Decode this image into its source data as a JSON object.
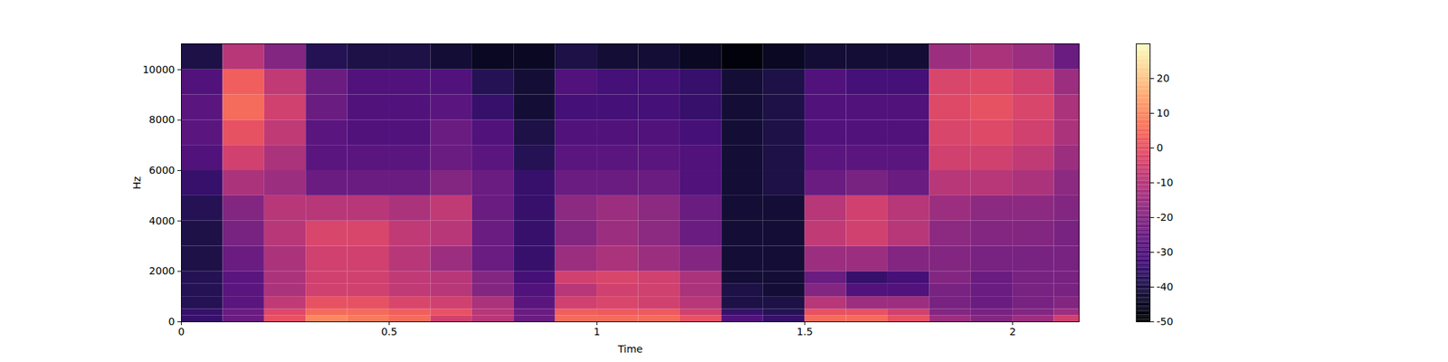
{
  "chart_data": {
    "type": "heatmap",
    "xlabel": "Time",
    "ylabel": "Hz",
    "xlim": [
      0,
      2.16
    ],
    "ylim": [
      0,
      11025
    ],
    "xticks": [
      0,
      0.5,
      1,
      1.5,
      2
    ],
    "yticks": [
      0,
      2000,
      4000,
      6000,
      8000,
      10000
    ],
    "color": "magma",
    "time_edges": [
      0,
      0.1,
      0.2,
      0.3,
      0.4,
      0.5,
      0.6,
      0.7,
      0.8,
      0.9,
      1.0,
      1.1,
      1.2,
      1.3,
      1.4,
      1.5,
      1.6,
      1.7,
      1.8,
      1.9,
      2.0,
      2.1,
      2.16
    ],
    "freq_edges": [
      0,
      250,
      500,
      1000,
      1500,
      2000,
      3000,
      4000,
      5000,
      6000,
      7000,
      8000,
      9000,
      10000,
      11025
    ],
    "values": [
      [
        -35,
        -25,
        0,
        10,
        8,
        5,
        -5,
        -10,
        -25,
        5,
        5,
        5,
        0,
        -30,
        -35,
        5,
        5,
        0,
        -15,
        -20,
        -15,
        -5
      ],
      [
        -35,
        -25,
        -2,
        5,
        5,
        3,
        0,
        -10,
        -25,
        3,
        2,
        2,
        -5,
        -35,
        -38,
        0,
        0,
        -5,
        -20,
        -22,
        -20,
        -15
      ],
      [
        -38,
        -28,
        -8,
        0,
        0,
        -3,
        -5,
        -12,
        -28,
        -5,
        -3,
        -5,
        -10,
        -40,
        -40,
        -10,
        -15,
        -15,
        -22,
        -25,
        -22,
        -20
      ],
      [
        -38,
        -28,
        -12,
        -5,
        -5,
        -8,
        -10,
        -20,
        -30,
        -10,
        -5,
        -5,
        -12,
        -40,
        -42,
        -20,
        -30,
        -30,
        -22,
        -25,
        -22,
        -22
      ],
      [
        -38,
        -28,
        -12,
        -5,
        -5,
        -8,
        -10,
        -20,
        -32,
        -5,
        -3,
        -5,
        -12,
        -42,
        -42,
        -25,
        -35,
        -32,
        -20,
        -25,
        -22,
        -22
      ],
      [
        -40,
        -25,
        -12,
        -5,
        -5,
        -10,
        -15,
        -25,
        -35,
        -15,
        -12,
        -15,
        -20,
        -42,
        -42,
        -15,
        -15,
        -20,
        -20,
        -22,
        -22,
        -22
      ],
      [
        -40,
        -22,
        -10,
        -3,
        -3,
        -8,
        -10,
        -25,
        -35,
        -20,
        -15,
        -18,
        -25,
        -42,
        -42,
        -8,
        -5,
        -10,
        -18,
        -20,
        -20,
        -22
      ],
      [
        -38,
        -20,
        -10,
        -10,
        -10,
        -12,
        -8,
        -25,
        -35,
        -18,
        -15,
        -18,
        -25,
        -42,
        -42,
        -10,
        -5,
        -10,
        -15,
        -18,
        -18,
        -20
      ],
      [
        -35,
        -12,
        -15,
        -25,
        -25,
        -25,
        -20,
        -25,
        -35,
        -25,
        -25,
        -25,
        -30,
        -42,
        -40,
        -25,
        -22,
        -25,
        -10,
        -10,
        -12,
        -18
      ],
      [
        -30,
        -5,
        -12,
        -28,
        -28,
        -28,
        -25,
        -28,
        -38,
        -28,
        -28,
        -28,
        -30,
        -42,
        -40,
        -28,
        -28,
        -28,
        -5,
        -5,
        -8,
        -15
      ],
      [
        -28,
        0,
        -8,
        -28,
        -30,
        -30,
        -25,
        -30,
        -40,
        -30,
        -30,
        -30,
        -32,
        -42,
        -40,
        -30,
        -30,
        -30,
        -3,
        -2,
        -5,
        -12
      ],
      [
        -28,
        5,
        -5,
        -25,
        -30,
        -30,
        -28,
        -35,
        -42,
        -32,
        -32,
        -32,
        -35,
        -42,
        -40,
        -30,
        -30,
        -30,
        -2,
        0,
        -3,
        -12
      ],
      [
        -30,
        3,
        -8,
        -25,
        -30,
        -30,
        -30,
        -38,
        -42,
        -30,
        -32,
        -32,
        -35,
        -42,
        -40,
        -30,
        -32,
        -32,
        -3,
        -2,
        -5,
        -15
      ],
      [
        -40,
        -10,
        -20,
        -38,
        -40,
        -40,
        -42,
        -45,
        -45,
        -40,
        -42,
        -42,
        -45,
        -48,
        -45,
        -42,
        -42,
        -42,
        -15,
        -12,
        -15,
        -25
      ]
    ],
    "colorbar": {
      "range": [
        -50,
        30
      ],
      "ticks": [
        -50,
        -40,
        -30,
        -20,
        -10,
        0,
        10,
        20
      ]
    }
  }
}
